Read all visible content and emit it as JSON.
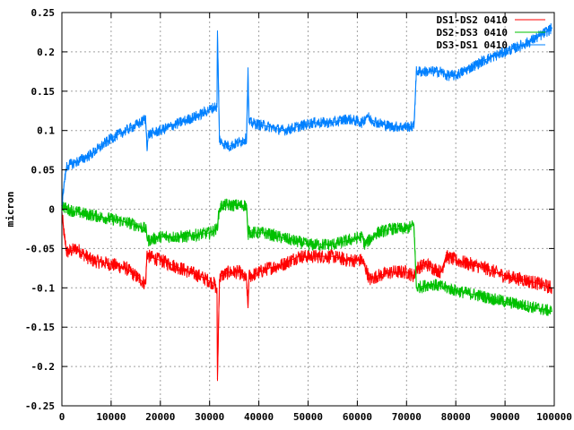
{
  "chart_data": {
    "type": "line",
    "ylabel": "micron",
    "xlim": [
      0,
      100000
    ],
    "ylim": [
      -0.25,
      0.25
    ],
    "x_ticks": [
      0,
      10000,
      20000,
      30000,
      40000,
      50000,
      60000,
      70000,
      80000,
      90000,
      100000
    ],
    "x_tick_labels": [
      "0",
      "10000",
      "20000",
      "30000",
      "40000",
      "50000",
      "60000",
      "70000",
      "80000",
      "90000",
      "100000"
    ],
    "y_ticks": [
      -0.25,
      -0.2,
      -0.15,
      -0.1,
      -0.05,
      0,
      0.05,
      0.1,
      0.15,
      0.2,
      0.25
    ],
    "y_tick_labels": [
      "-0.25",
      "-0.2",
      "-0.15",
      "-0.1",
      "-0.05",
      "0",
      "0.05",
      "0.1",
      "0.15",
      "0.2",
      "0.25"
    ],
    "grid": true,
    "legend_position": "top-right",
    "series": [
      {
        "name": "DS1-DS2 0410",
        "color": "#ff0000",
        "x": [
          0,
          500,
          1000,
          3000,
          6000,
          10000,
          13000,
          16000,
          17000,
          17300,
          17600,
          20000,
          24000,
          28000,
          31000,
          31500,
          31600,
          32000,
          32300,
          34000,
          36000,
          37500,
          37800,
          38000,
          38300,
          42000,
          45000,
          48000,
          51000,
          55000,
          58000,
          61000,
          62000,
          62500,
          64000,
          67000,
          70000,
          71500,
          72000,
          74000,
          77000,
          78000,
          80000,
          83000,
          86000,
          90000,
          94000,
          97000,
          99500
        ],
        "y": [
          -0.005,
          -0.035,
          -0.055,
          -0.05,
          -0.065,
          -0.07,
          -0.075,
          -0.09,
          -0.095,
          -0.055,
          -0.06,
          -0.065,
          -0.075,
          -0.085,
          -0.095,
          -0.105,
          -0.215,
          -0.09,
          -0.085,
          -0.08,
          -0.08,
          -0.09,
          -0.125,
          -0.085,
          -0.085,
          -0.075,
          -0.07,
          -0.06,
          -0.06,
          -0.06,
          -0.065,
          -0.065,
          -0.08,
          -0.09,
          -0.085,
          -0.08,
          -0.08,
          -0.085,
          -0.075,
          -0.07,
          -0.08,
          -0.06,
          -0.065,
          -0.07,
          -0.075,
          -0.085,
          -0.09,
          -0.095,
          -0.1
        ]
      },
      {
        "name": "DS2-DS3 0410",
        "color": "#00c000",
        "x": [
          0,
          1000,
          4000,
          8000,
          12000,
          15000,
          17000,
          17500,
          20000,
          25000,
          30000,
          31500,
          32000,
          32500,
          36000,
          37500,
          37800,
          38000,
          38300,
          41000,
          44000,
          47000,
          50000,
          55000,
          58000,
          61000,
          61500,
          64000,
          67000,
          70000,
          71500,
          72000,
          75000,
          78000,
          81000,
          85000,
          88000,
          92000,
          96000,
          99500
        ],
        "y": [
          0.005,
          0.0,
          -0.005,
          -0.01,
          -0.015,
          -0.02,
          -0.025,
          -0.04,
          -0.035,
          -0.035,
          -0.03,
          -0.025,
          0.0,
          0.005,
          0.005,
          0.005,
          -0.035,
          -0.025,
          -0.03,
          -0.03,
          -0.035,
          -0.04,
          -0.045,
          -0.045,
          -0.04,
          -0.035,
          -0.045,
          -0.03,
          -0.025,
          -0.025,
          -0.02,
          -0.1,
          -0.095,
          -0.1,
          -0.105,
          -0.11,
          -0.115,
          -0.12,
          -0.125,
          -0.13
        ]
      },
      {
        "name": "DS3-DS1 0410",
        "color": "#0080ff",
        "x": [
          0,
          500,
          1000,
          3000,
          6000,
          10000,
          13000,
          16000,
          17000,
          17300,
          17600,
          20000,
          24000,
          28000,
          31000,
          31500,
          31600,
          32000,
          32300,
          34000,
          36000,
          37500,
          37800,
          38000,
          38300,
          42000,
          45000,
          48000,
          51000,
          55000,
          58000,
          61000,
          62000,
          62500,
          64000,
          67000,
          70000,
          71500,
          72000,
          74000,
          77000,
          78000,
          80000,
          83000,
          86000,
          90000,
          94000,
          97000,
          99500
        ],
        "y": [
          0.005,
          0.035,
          0.055,
          0.06,
          0.07,
          0.09,
          0.1,
          0.11,
          0.115,
          0.08,
          0.095,
          0.1,
          0.11,
          0.12,
          0.13,
          0.13,
          0.225,
          0.09,
          0.085,
          0.08,
          0.085,
          0.09,
          0.175,
          0.11,
          0.11,
          0.105,
          0.1,
          0.105,
          0.11,
          0.11,
          0.115,
          0.11,
          0.12,
          0.115,
          0.11,
          0.105,
          0.105,
          0.105,
          0.175,
          0.175,
          0.175,
          0.17,
          0.17,
          0.18,
          0.19,
          0.2,
          0.21,
          0.22,
          0.23
        ]
      }
    ]
  }
}
